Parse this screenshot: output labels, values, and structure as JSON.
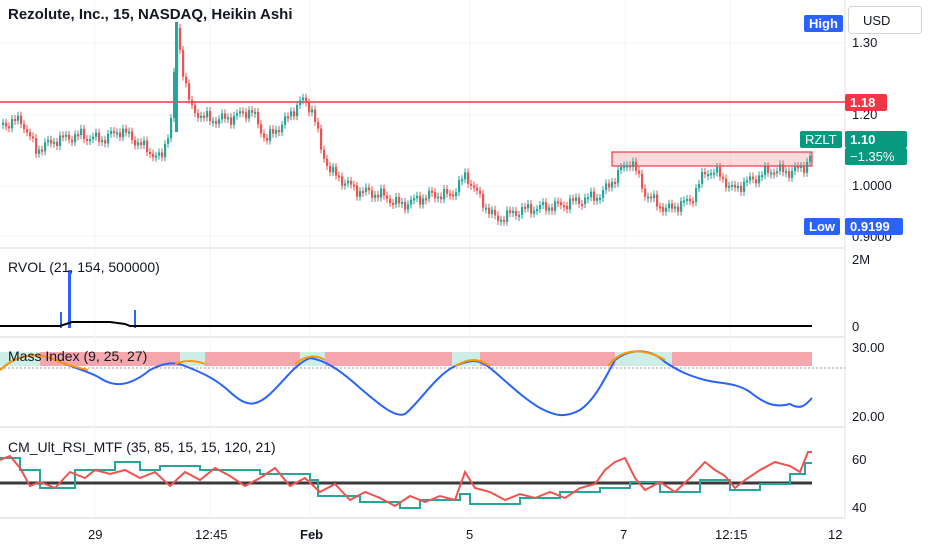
{
  "header": {
    "title": "Rezolute, Inc., 15, NASDAQ, Heikin Ashi",
    "currency": "USD"
  },
  "price_pane": {
    "y_ticks": [
      "1.30",
      "1.20",
      "1.0000",
      "0.9000"
    ],
    "resistance_value": "1.18",
    "high_label": "High",
    "low_label": "Low",
    "low_value": "0.9199",
    "symbol": "RZLT",
    "last_price": "1.10",
    "change": "−1.35%"
  },
  "rvol_pane": {
    "label": "RVOL (21, 154, 500000)",
    "y_ticks": [
      "2M",
      "0"
    ]
  },
  "mass_pane": {
    "label": "Mass Index (9, 25, 27)",
    "y_ticks": [
      "30.00",
      "20.00"
    ]
  },
  "rsi_pane": {
    "label": "CM_Ult_RSI_MTF (35, 85, 15, 15, 120, 21)",
    "y_ticks": [
      "60",
      "40"
    ]
  },
  "x_axis": {
    "labels": [
      "29",
      "12:45",
      "Feb",
      "5",
      "7",
      "12:15",
      "12"
    ]
  },
  "colors": {
    "up": "#26a69a",
    "down": "#ef5350",
    "resistance": "#f23645",
    "mass_line": "#2962ff",
    "mass_high": "#ff9800",
    "rsi_main": "#ef5350",
    "rsi_signal": "#26a69a",
    "high_tag": "#2962ff",
    "low_tag": "#2962ff"
  }
}
